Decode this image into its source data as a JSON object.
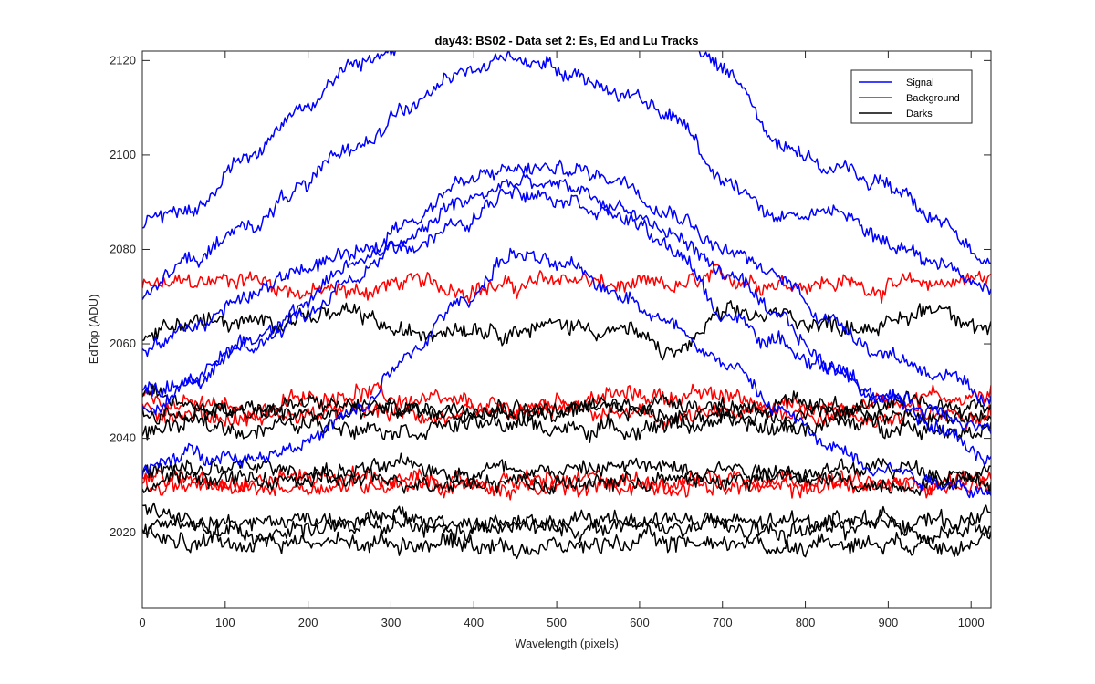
{
  "chart_data": {
    "type": "line",
    "title": "day43: BS02 - Data set 2: Es, Ed and Lu Tracks",
    "xlabel": "Wavelength (pixels)",
    "ylabel": "EdTop (ADU)",
    "xlim": [
      0,
      1024
    ],
    "ylim": [
      2004,
      2122
    ],
    "xticks": [
      0,
      100,
      200,
      300,
      400,
      500,
      600,
      700,
      800,
      900,
      1000
    ],
    "yticks": [
      2020,
      2040,
      2060,
      2080,
      2100,
      2120
    ],
    "grid": false,
    "legend": {
      "location": "top-right",
      "entries": [
        "Signal",
        "Background",
        "Darks"
      ]
    },
    "colors": {
      "Signal": "#0000ff",
      "Background": "#ff0000",
      "Darks": "#000000"
    },
    "noise_amplitude": {
      "Signal": 1.6,
      "Background": 1.8,
      "Darks": 1.8
    },
    "x_knots": [
      0,
      64,
      128,
      192,
      256,
      320,
      384,
      448,
      512,
      576,
      640,
      704,
      768,
      832,
      896,
      960,
      1024
    ],
    "series": [
      {
        "group": "Signal",
        "values": [
          2085,
          2089,
          2100,
          2110,
          2119,
          2124,
          2126,
          2126,
          2125,
          2126,
          2126,
          2118,
          2103,
          2097,
          2094,
          2086,
          2078
        ]
      },
      {
        "group": "Signal",
        "values": [
          2071,
          2078,
          2085,
          2093,
          2102,
          2110,
          2117,
          2121,
          2118,
          2113,
          2108,
          2095,
          2087,
          2088,
          2082,
          2077,
          2072
        ]
      },
      {
        "group": "Signal",
        "values": [
          2050,
          2053,
          2061,
          2068,
          2077,
          2086,
          2094,
          2097,
          2097,
          2095,
          2088,
          2080,
          2074,
          2065,
          2058,
          2054,
          2047
        ]
      },
      {
        "group": "Signal",
        "values": [
          2046,
          2052,
          2059,
          2066,
          2074,
          2082,
          2090,
          2094,
          2093,
          2089,
          2083,
          2075,
          2065,
          2055,
          2049,
          2046,
          2042
        ]
      },
      {
        "group": "Signal",
        "values": [
          2058,
          2064,
          2070,
          2076,
          2079,
          2081,
          2085,
          2093,
          2091,
          2087,
          2080,
          2066,
          2060,
          2055,
          2048,
          2042,
          2036
        ]
      },
      {
        "group": "Signal",
        "values": [
          2033,
          2037,
          2036,
          2039,
          2045,
          2057,
          2069,
          2079,
          2076,
          2071,
          2064,
          2056,
          2046,
          2038,
          2034,
          2031,
          2029
        ]
      },
      {
        "group": "Background",
        "values": [
          2072,
          2073,
          2074,
          2071,
          2071,
          2073,
          2072,
          2072,
          2074,
          2072,
          2072,
          2074,
          2073,
          2073,
          2072,
          2073,
          2074
        ]
      },
      {
        "group": "Background",
        "values": [
          2049,
          2047,
          2046,
          2048,
          2050,
          2048,
          2047,
          2046,
          2048,
          2049,
          2049,
          2049,
          2047,
          2046,
          2048,
          2049,
          2049
        ]
      },
      {
        "group": "Background",
        "values": [
          2046,
          2045,
          2044,
          2045,
          2046,
          2045,
          2044,
          2045,
          2046,
          2045,
          2044,
          2045,
          2046,
          2045,
          2044,
          2045,
          2046
        ]
      },
      {
        "group": "Background",
        "values": [
          2032,
          2031,
          2031,
          2032,
          2032,
          2031,
          2030,
          2031,
          2031,
          2031,
          2031,
          2032,
          2032,
          2031,
          2030,
          2031,
          2032
        ]
      },
      {
        "group": "Background",
        "values": [
          2030,
          2030,
          2029,
          2030,
          2030,
          2031,
          2030,
          2029,
          2029,
          2030,
          2030,
          2030,
          2029,
          2030,
          2030,
          2030,
          2030
        ]
      },
      {
        "group": "Darks",
        "values": [
          2062,
          2065,
          2064,
          2066,
          2066,
          2062,
          2064,
          2063,
          2064,
          2063,
          2058,
          2066,
          2066,
          2064,
          2064,
          2068,
          2063
        ]
      },
      {
        "group": "Darks",
        "values": [
          2049,
          2047,
          2046,
          2047,
          2047,
          2046,
          2047,
          2047,
          2046,
          2047,
          2048,
          2047,
          2047,
          2046,
          2047,
          2047,
          2047
        ]
      },
      {
        "group": "Darks",
        "values": [
          2045,
          2045,
          2046,
          2045,
          2045,
          2046,
          2045,
          2045,
          2045,
          2046,
          2045,
          2045,
          2045,
          2046,
          2045,
          2044,
          2045
        ]
      },
      {
        "group": "Darks",
        "values": [
          2041,
          2043,
          2042,
          2043,
          2043,
          2042,
          2043,
          2043,
          2042,
          2042,
          2043,
          2043,
          2042,
          2043,
          2043,
          2042,
          2042
        ]
      },
      {
        "group": "Darks",
        "values": [
          2033,
          2033,
          2034,
          2033,
          2033,
          2034,
          2033,
          2034,
          2033,
          2034,
          2034,
          2034,
          2033,
          2033,
          2034,
          2033,
          2033
        ]
      },
      {
        "group": "Darks",
        "values": [
          2030,
          2032,
          2031,
          2031,
          2031,
          2031,
          2031,
          2031,
          2030,
          2031,
          2031,
          2031,
          2032,
          2031,
          2030,
          2031,
          2031
        ]
      },
      {
        "group": "Darks",
        "values": [
          2025,
          2023,
          2022,
          2023,
          2023,
          2023,
          2022,
          2022,
          2022,
          2023,
          2023,
          2022,
          2022,
          2023,
          2023,
          2022,
          2024
        ]
      },
      {
        "group": "Darks",
        "values": [
          2022,
          2021,
          2020,
          2021,
          2021,
          2021,
          2020,
          2021,
          2021,
          2021,
          2021,
          2021,
          2020,
          2021,
          2021,
          2020,
          2021
        ]
      },
      {
        "group": "Darks",
        "values": [
          2019,
          2018,
          2018,
          2018,
          2018,
          2018,
          2018,
          2017,
          2017,
          2018,
          2018,
          2018,
          2017,
          2018,
          2018,
          2018,
          2019
        ]
      }
    ]
  }
}
